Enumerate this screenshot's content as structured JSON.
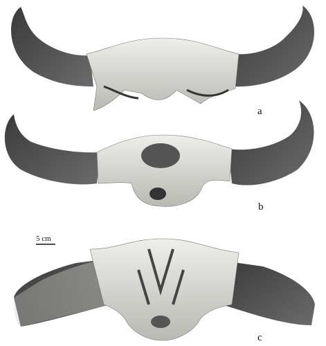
{
  "panels": [
    {
      "label": "a"
    },
    {
      "label": "b"
    },
    {
      "label": "c"
    }
  ],
  "scale_bar": {
    "label": "5 cm"
  }
}
